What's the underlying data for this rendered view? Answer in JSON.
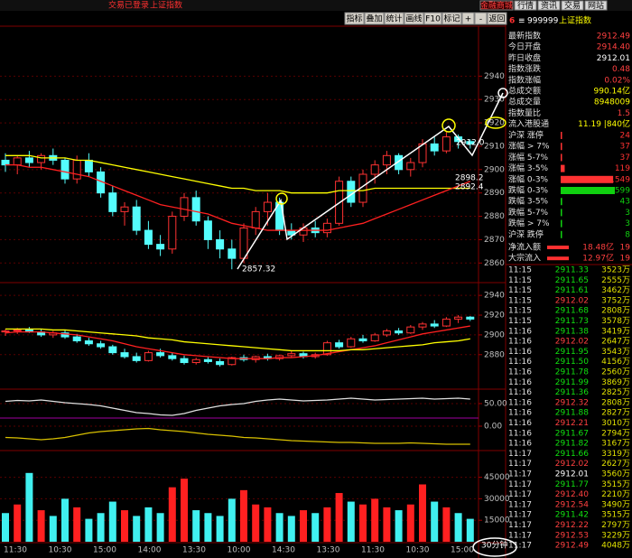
{
  "top_bar": {
    "status": "交易已登录",
    "index": "上证指数",
    "buttons": [
      "金融商城",
      "行情",
      "资讯",
      "交易",
      "网站"
    ]
  },
  "toolbar": [
    "指标",
    "叠加",
    "统计",
    "画线",
    "F10",
    "标记",
    "+",
    "-",
    "返回"
  ],
  "header": {
    "prefix": "6",
    "code": "999999",
    "name": "上证指数"
  },
  "stats": [
    {
      "label": "最新指数",
      "value": "2912.49",
      "color": "#ff4040"
    },
    {
      "label": "今日开盘",
      "value": "2914.40",
      "color": "#ff4040"
    },
    {
      "label": "昨日收盘",
      "value": "2912.01",
      "color": "#ffffff"
    },
    {
      "label": "指数涨跌",
      "value": "0.48",
      "color": "#ff4040"
    },
    {
      "label": "指数涨幅",
      "value": "0.02%",
      "color": "#ff4040"
    },
    {
      "label": "总成交额",
      "value": "990.14亿",
      "color": "#ffff00"
    },
    {
      "label": "总成交量",
      "value": "8948009",
      "color": "#ffff00"
    },
    {
      "label": "指数量比",
      "value": "1.5",
      "color": "#ff4040"
    },
    {
      "label": "流入港股通",
      "value": "11.19 |840亿",
      "color": "#ffff00"
    }
  ],
  "breadth": [
    {
      "label": "沪深 涨停",
      "value": 24,
      "color": "#ff3232"
    },
    {
      "label": "涨幅 > 7%",
      "value": 37,
      "color": "#ff3232"
    },
    {
      "label": "涨幅 5-7%",
      "value": 37,
      "color": "#ff3232"
    },
    {
      "label": "涨幅 3-5%",
      "value": 119,
      "color": "#ff3232"
    },
    {
      "label": "涨幅 0-3%",
      "value": 1549,
      "color": "#ff3232"
    },
    {
      "label": "跌幅 0-3%",
      "value": 1599,
      "color": "#10d010"
    },
    {
      "label": "跌幅 3-5%",
      "value": 43,
      "color": "#10d010"
    },
    {
      "label": "跌幅 5-7%",
      "value": 3,
      "color": "#10d010"
    },
    {
      "label": "跌幅 > 7%",
      "value": 3,
      "color": "#10d010"
    },
    {
      "label": "沪深 跌停",
      "value": 8,
      "color": "#10d010"
    }
  ],
  "flows": [
    {
      "label": "净流入额",
      "value": "18.48亿",
      "extra": "19"
    },
    {
      "label": "大宗流入",
      "value": "12.97亿",
      "extra": "19"
    }
  ],
  "ticks": [
    {
      "time": "11:15",
      "price": "2911.33",
      "vol": "3523万"
    },
    {
      "time": "11:15",
      "price": "2911.65",
      "vol": "2555万"
    },
    {
      "time": "11:15",
      "price": "2911.61",
      "vol": "3462万"
    },
    {
      "time": "11:15",
      "price": "2912.02",
      "vol": "3752万"
    },
    {
      "time": "11:15",
      "price": "2911.68",
      "vol": "2808万"
    },
    {
      "time": "11:15",
      "price": "2911.73",
      "vol": "3578万"
    },
    {
      "time": "11:16",
      "price": "2911.38",
      "vol": "3419万"
    },
    {
      "time": "11:16",
      "price": "2912.02",
      "vol": "2647万"
    },
    {
      "time": "11:16",
      "price": "2911.95",
      "vol": "3543万"
    },
    {
      "time": "11:16",
      "price": "2911.50",
      "vol": "4156万"
    },
    {
      "time": "11:16",
      "price": "2911.78",
      "vol": "2560万"
    },
    {
      "time": "11:16",
      "price": "2911.99",
      "vol": "3869万"
    },
    {
      "time": "11:16",
      "price": "2911.36",
      "vol": "2825万"
    },
    {
      "time": "11:16",
      "price": "2912.32",
      "vol": "2808万"
    },
    {
      "time": "11:16",
      "price": "2911.88",
      "vol": "2827万"
    },
    {
      "time": "11:16",
      "price": "2912.21",
      "vol": "3010万"
    },
    {
      "time": "11:16",
      "price": "2911.67",
      "vol": "2794万"
    },
    {
      "time": "11:16",
      "price": "2911.82",
      "vol": "3167万"
    },
    {
      "time": "11:17",
      "price": "2911.66",
      "vol": "3319万"
    },
    {
      "time": "11:17",
      "price": "2912.02",
      "vol": "2627万"
    },
    {
      "time": "11:17",
      "price": "2912.01",
      "vol": "3560万"
    },
    {
      "time": "11:17",
      "price": "2911.77",
      "vol": "3515万"
    },
    {
      "time": "11:17",
      "price": "2912.40",
      "vol": "2210万"
    },
    {
      "time": "11:17",
      "price": "2912.54",
      "vol": "3490万"
    },
    {
      "time": "11:17",
      "price": "2911.42",
      "vol": "3515万"
    },
    {
      "time": "11:17",
      "price": "2912.22",
      "vol": "2797万"
    },
    {
      "time": "11:17",
      "price": "2912.53",
      "vol": "3229万"
    },
    {
      "time": "11:17",
      "price": "2912.49",
      "vol": "4048万"
    }
  ],
  "period": "30分钟",
  "time_axis": [
    "11:30",
    "10:30",
    "15:00",
    "14:00",
    "13:30",
    "10:00",
    "14:30",
    "13:30",
    "11:30",
    "10:30",
    "15:00"
  ],
  "chart_data": [
    {
      "type": "candlestick",
      "up_color": "#ff3232",
      "down_color": "#54fcfc",
      "ylim": [
        2852,
        2961
      ],
      "yticks": [
        2860,
        2870,
        2880,
        2890,
        2900,
        2910,
        2920,
        2930,
        2940
      ],
      "candles": [
        [
          2904,
          2907,
          2899,
          2902
        ],
        [
          2902,
          2906,
          2898,
          2905
        ],
        [
          2905,
          2908,
          2901,
          2903
        ],
        [
          2903,
          2907,
          2900,
          2906
        ],
        [
          2906,
          2909,
          2902,
          2904
        ],
        [
          2904,
          2905,
          2894,
          2896
        ],
        [
          2896,
          2906,
          2894,
          2904
        ],
        [
          2904,
          2907,
          2897,
          2899
        ],
        [
          2899,
          2901,
          2888,
          2890
        ],
        [
          2890,
          2893,
          2880,
          2882
        ],
        [
          2882,
          2886,
          2876,
          2884
        ],
        [
          2884,
          2887,
          2872,
          2874
        ],
        [
          2874,
          2878,
          2866,
          2868
        ],
        [
          2868,
          2872,
          2863,
          2866
        ],
        [
          2866,
          2882,
          2864,
          2880
        ],
        [
          2880,
          2890,
          2878,
          2888
        ],
        [
          2888,
          2891,
          2876,
          2878
        ],
        [
          2878,
          2880,
          2866,
          2870
        ],
        [
          2870,
          2874,
          2862,
          2866
        ],
        [
          2866,
          2870,
          2857.32,
          2862
        ],
        [
          2862,
          2877,
          2860,
          2875
        ],
        [
          2875,
          2884,
          2872,
          2882
        ],
        [
          2882,
          2890,
          2876,
          2886
        ],
        [
          2886,
          2888,
          2872,
          2874
        ],
        [
          2874,
          2877,
          2870,
          2872
        ],
        [
          2872,
          2877,
          2869,
          2875
        ],
        [
          2875,
          2878,
          2871,
          2873
        ],
        [
          2873,
          2879,
          2871,
          2877
        ],
        [
          2877,
          2897,
          2876,
          2895
        ],
        [
          2895,
          2897,
          2884,
          2886
        ],
        [
          2886,
          2900,
          2884,
          2898
        ],
        [
          2898,
          2904,
          2894,
          2902
        ],
        [
          2902,
          2908,
          2898,
          2906
        ],
        [
          2906,
          2907,
          2898,
          2900
        ],
        [
          2900,
          2905,
          2897,
          2903
        ],
        [
          2903,
          2913,
          2901,
          2911
        ],
        [
          2911,
          2914,
          2906,
          2908
        ],
        [
          2908,
          2916,
          2907,
          2914
        ],
        [
          2914,
          2915,
          2909,
          2912
        ],
        [
          2912,
          2913,
          2909,
          2911
        ]
      ],
      "series": [
        {
          "color": "#ffff00",
          "values": [
            2906,
            2906,
            2906,
            2905,
            2905,
            2905,
            2904,
            2904,
            2903,
            2902,
            2901,
            2900,
            2899,
            2898,
            2897,
            2896,
            2895,
            2894,
            2893,
            2892,
            2892,
            2891,
            2891,
            2891,
            2890,
            2890,
            2890,
            2890,
            2891,
            2891,
            2891,
            2892,
            2892,
            2892,
            2892,
            2892,
            2892,
            2892,
            2892,
            2892
          ]
        },
        {
          "color": "#ff2020",
          "values": [
            2902,
            2902,
            2901,
            2901,
            2900,
            2899,
            2898,
            2897,
            2895,
            2893,
            2891,
            2889,
            2887,
            2885,
            2884,
            2883,
            2882,
            2881,
            2879,
            2877,
            2876,
            2875,
            2874,
            2874,
            2874,
            2874,
            2874,
            2874,
            2875,
            2876,
            2877,
            2879,
            2881,
            2883,
            2885,
            2887,
            2889,
            2891,
            2893,
            2895
          ]
        }
      ],
      "annotations": [
        "2857.32",
        "2912.0",
        "2898.2",
        "2892.4"
      ]
    },
    {
      "type": "candlestick",
      "up_color": "#ff3232",
      "down_color": "#54fcfc",
      "ylim": [
        2846,
        2952
      ],
      "yticks": [
        2880,
        2900,
        2920,
        2940
      ],
      "candles": [
        [
          2903,
          2906,
          2899,
          2904
        ],
        [
          2904,
          2907,
          2901,
          2905
        ],
        [
          2905,
          2908,
          2902,
          2903
        ],
        [
          2903,
          2906,
          2898,
          2900
        ],
        [
          2900,
          2904,
          2897,
          2902
        ],
        [
          2902,
          2905,
          2896,
          2898
        ],
        [
          2898,
          2901,
          2892,
          2894
        ],
        [
          2894,
          2897,
          2889,
          2891
        ],
        [
          2891,
          2894,
          2886,
          2888
        ],
        [
          2888,
          2890,
          2880,
          2882
        ],
        [
          2882,
          2886,
          2876,
          2878
        ],
        [
          2878,
          2882,
          2872,
          2874
        ],
        [
          2874,
          2884,
          2873,
          2882
        ],
        [
          2882,
          2886,
          2877,
          2879
        ],
        [
          2879,
          2882,
          2874,
          2876
        ],
        [
          2876,
          2879,
          2870,
          2872
        ],
        [
          2872,
          2877,
          2870,
          2875
        ],
        [
          2875,
          2878,
          2871,
          2873
        ],
        [
          2873,
          2876,
          2868,
          2870
        ],
        [
          2870,
          2878,
          2869,
          2877
        ],
        [
          2877,
          2880,
          2873,
          2875
        ],
        [
          2875,
          2879,
          2872,
          2878
        ],
        [
          2878,
          2881,
          2874,
          2876
        ],
        [
          2876,
          2880,
          2874,
          2879
        ],
        [
          2879,
          2884,
          2877,
          2881
        ],
        [
          2881,
          2883,
          2876,
          2878
        ],
        [
          2878,
          2882,
          2876,
          2880
        ],
        [
          2880,
          2894,
          2879,
          2892
        ],
        [
          2892,
          2895,
          2886,
          2888
        ],
        [
          2888,
          2898,
          2887,
          2896
        ],
        [
          2896,
          2900,
          2892,
          2894
        ],
        [
          2894,
          2902,
          2893,
          2900
        ],
        [
          2900,
          2906,
          2898,
          2904
        ],
        [
          2904,
          2907,
          2900,
          2902
        ],
        [
          2902,
          2910,
          2901,
          2908
        ],
        [
          2908,
          2913,
          2905,
          2911
        ],
        [
          2911,
          2915,
          2907,
          2909
        ],
        [
          2909,
          2918,
          2908,
          2916
        ],
        [
          2916,
          2920,
          2912,
          2918
        ],
        [
          2918,
          2919,
          2914,
          2916
        ]
      ],
      "series": [
        {
          "color": "#ff2020",
          "values": [
            2902,
            2903,
            2903,
            2903,
            2902,
            2901,
            2900,
            2898,
            2896,
            2894,
            2891,
            2888,
            2886,
            2884,
            2882,
            2880,
            2879,
            2878,
            2877,
            2876,
            2876,
            2876,
            2876,
            2877,
            2877,
            2878,
            2879,
            2881,
            2883,
            2885,
            2887,
            2889,
            2892,
            2895,
            2898,
            2901,
            2903,
            2905,
            2907,
            2909
          ]
        },
        {
          "color": "#ffff00",
          "values": [
            2906,
            2906,
            2906,
            2906,
            2905,
            2905,
            2904,
            2903,
            2902,
            2901,
            2900,
            2899,
            2897,
            2896,
            2895,
            2893,
            2892,
            2891,
            2890,
            2889,
            2888,
            2887,
            2886,
            2885,
            2884,
            2884,
            2884,
            2884,
            2884,
            2885,
            2885,
            2886,
            2887,
            2888,
            2889,
            2890,
            2892,
            2893,
            2894,
            2896
          ]
        }
      ]
    },
    {
      "type": "line",
      "ylim": [
        -52,
        78
      ],
      "yticks": [
        {
          "value": 50,
          "label": "50.00"
        },
        {
          "value": 0,
          "label": "0.00"
        }
      ],
      "series": [
        {
          "color": "#e0e0e0",
          "values": [
            55,
            57,
            56,
            58,
            55,
            52,
            50,
            48,
            45,
            40,
            35,
            30,
            28,
            25,
            24,
            28,
            35,
            40,
            45,
            48,
            50,
            55,
            58,
            60,
            58,
            56,
            57,
            58,
            60,
            62,
            60,
            58,
            59,
            60,
            61,
            62,
            60,
            61,
            62,
            60
          ]
        },
        {
          "color": "#d8c000",
          "values": [
            -25,
            -26,
            -28,
            -30,
            -28,
            -25,
            -20,
            -15,
            -12,
            -10,
            -8,
            -6,
            -5,
            -8,
            -10,
            -12,
            -15,
            -18,
            -20,
            -22,
            -25,
            -26,
            -28,
            -30,
            -32,
            -33,
            -34,
            -35,
            -36,
            -36,
            -37,
            -38,
            -38,
            -38,
            -37,
            -38,
            -39,
            -40,
            -40,
            -40
          ]
        }
      ]
    },
    {
      "type": "bar",
      "up_color": "#ff2020",
      "down_color": "#40f0f0",
      "ylim": [
        0,
        63000
      ],
      "yticks": [
        45000,
        30000,
        15000
      ],
      "values": [
        20000,
        26000,
        48000,
        22000,
        18000,
        30000,
        24000,
        16000,
        20000,
        28000,
        22000,
        18000,
        24000,
        20000,
        38000,
        44000,
        22000,
        20000,
        18000,
        30000,
        36000,
        26000,
        24000,
        20000,
        18000,
        22000,
        20000,
        24000,
        34000,
        28000,
        26000,
        30000,
        24000,
        22000,
        26000,
        40000,
        28000,
        24000,
        20000,
        16000
      ]
    }
  ]
}
